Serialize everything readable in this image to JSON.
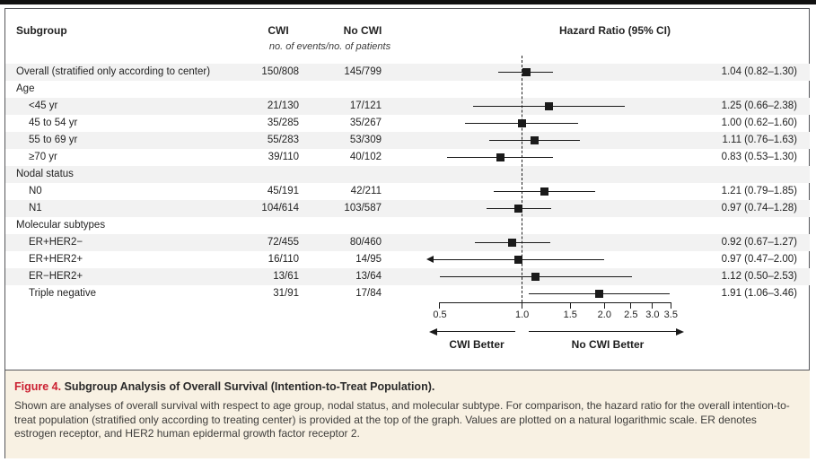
{
  "figure": {
    "columns": {
      "subgroup": "Subgroup",
      "cwi": "CWI",
      "no_cwi": "No CWI",
      "hazard_ratio": "Hazard Ratio (95% CI)",
      "events_note": "no. of events/no. of patients"
    }
  },
  "chart_data": {
    "type": "scatter",
    "subtype": "forest-plot",
    "title": "Hazard Ratio (95% CI)",
    "x_scale": "natural-log",
    "x_range": [
      0.5,
      3.5
    ],
    "x_ticks": [
      0.5,
      1.0,
      1.5,
      2.0,
      2.5,
      3.0,
      3.5
    ],
    "x_tick_labels": [
      "0.5",
      "1.0",
      "1.5",
      "2.0",
      "2.5",
      "3.0",
      "3.5"
    ],
    "reference_x": 1.0,
    "direction_labels": {
      "left": "CWI Better",
      "right": "No CWI Better"
    },
    "rows": [
      {
        "subgroup": "Overall (stratified only according to center)",
        "level": "overall",
        "cwi_events": "150/808",
        "no_cwi_events": "145/799",
        "hr": 1.04,
        "ci": [
          0.82,
          1.3
        ],
        "hr_label": "1.04 (0.82–1.30)"
      },
      {
        "subgroup": "Age",
        "level": "group"
      },
      {
        "subgroup": "<45 yr",
        "level": "item",
        "cwi_events": "21/130",
        "no_cwi_events": "17/121",
        "hr": 1.25,
        "ci": [
          0.66,
          2.38
        ],
        "hr_label": "1.25 (0.66–2.38)"
      },
      {
        "subgroup": "45 to 54 yr",
        "level": "item",
        "cwi_events": "35/285",
        "no_cwi_events": "35/267",
        "hr": 1.0,
        "ci": [
          0.62,
          1.6
        ],
        "hr_label": "1.00 (0.62–1.60)"
      },
      {
        "subgroup": "55 to 69 yr",
        "level": "item",
        "cwi_events": "55/283",
        "no_cwi_events": "53/309",
        "hr": 1.11,
        "ci": [
          0.76,
          1.63
        ],
        "hr_label": "1.11 (0.76–1.63)"
      },
      {
        "subgroup": "≥70 yr",
        "level": "item",
        "cwi_events": "39/110",
        "no_cwi_events": "40/102",
        "hr": 0.83,
        "ci": [
          0.53,
          1.3
        ],
        "hr_label": "0.83 (0.53–1.30)"
      },
      {
        "subgroup": "Nodal status",
        "level": "group"
      },
      {
        "subgroup": "N0",
        "level": "item",
        "cwi_events": "45/191",
        "no_cwi_events": "42/211",
        "hr": 1.21,
        "ci": [
          0.79,
          1.85
        ],
        "hr_label": "1.21 (0.79–1.85)"
      },
      {
        "subgroup": "N1",
        "level": "item",
        "cwi_events": "104/614",
        "no_cwi_events": "103/587",
        "hr": 0.97,
        "ci": [
          0.74,
          1.28
        ],
        "hr_label": "0.97 (0.74–1.28)"
      },
      {
        "subgroup": "Molecular subtypes",
        "level": "group"
      },
      {
        "subgroup": "ER+HER2−",
        "level": "item",
        "cwi_events": "72/455",
        "no_cwi_events": "80/460",
        "hr": 0.92,
        "ci": [
          0.67,
          1.27
        ],
        "hr_label": "0.92 (0.67–1.27)"
      },
      {
        "subgroup": "ER+HER2+",
        "level": "item",
        "cwi_events": "16/110",
        "no_cwi_events": "14/95",
        "hr": 0.97,
        "ci": [
          0.47,
          2.0
        ],
        "hr_label": "0.97 (0.47–2.00)"
      },
      {
        "subgroup": "ER−HER2+",
        "level": "item",
        "cwi_events": "13/61",
        "no_cwi_events": "13/64",
        "hr": 1.12,
        "ci": [
          0.5,
          2.53
        ],
        "hr_label": "1.12 (0.50–2.53)"
      },
      {
        "subgroup": "Triple negative",
        "level": "item",
        "cwi_events": "31/91",
        "no_cwi_events": "17/84",
        "hr": 1.91,
        "ci": [
          1.06,
          3.46
        ],
        "hr_label": "1.91 (1.06–3.46)"
      }
    ]
  },
  "caption": {
    "label": "Figure 4.",
    "title": " Subgroup Analysis of Overall Survival (Intention-to-Treat Population).",
    "body": "Shown are analyses of overall survival with respect to age group, nodal status, and molecular subtype. For comparison, the hazard ratio for the overall intention-to-treat population (stratified only according to treating center) is provided at the top of the graph. Values are plotted on a natural logarithmic scale. ER denotes estrogen receptor, and HER2 human epidermal growth factor receptor 2."
  },
  "colors": {
    "accent_red": "#cb2031",
    "stripe": "#f2f2f2",
    "caption_bg": "#f8f1e3",
    "ink": "#1a1a1a"
  }
}
